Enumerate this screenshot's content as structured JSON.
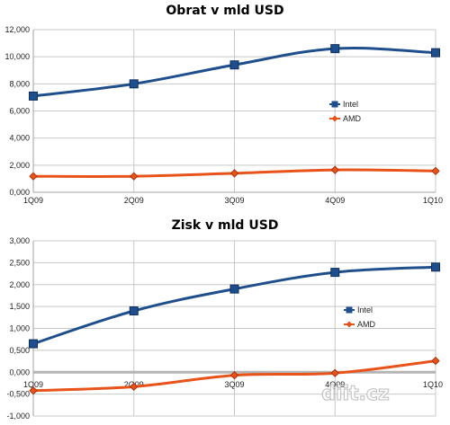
{
  "chart_data": [
    {
      "type": "line",
      "title": "Obrat v mld USD",
      "categories": [
        "1Q09",
        "2Q09",
        "3Q09",
        "4Q09",
        "1Q10"
      ],
      "ylim": [
        0,
        12
      ],
      "yticks": [
        0,
        2,
        4,
        6,
        8,
        10,
        12
      ],
      "ytick_labels": [
        "0,000",
        "2,000",
        "4,000",
        "6,000",
        "8,000",
        "10,000",
        "12,000"
      ],
      "grid": true,
      "legend_position": "right",
      "series": [
        {
          "name": "Intel",
          "color": "#1f4e8c",
          "marker": "square",
          "values": [
            7.1,
            8.0,
            9.4,
            10.6,
            10.3
          ]
        },
        {
          "name": "AMD",
          "color": "#e8531a",
          "marker": "diamond",
          "values": [
            1.18,
            1.18,
            1.4,
            1.65,
            1.57
          ]
        }
      ]
    },
    {
      "type": "line",
      "title": "Zisk v mld USD",
      "categories": [
        "1Q09",
        "2Q09",
        "3Q09",
        "4Q09",
        "1Q10"
      ],
      "ylim": [
        -1,
        3
      ],
      "yticks": [
        -1,
        -0.5,
        0,
        0.5,
        1,
        1.5,
        2,
        2.5,
        3
      ],
      "ytick_labels": [
        "-1,000",
        "-0,500",
        "0,000",
        "0,500",
        "1,000",
        "1,500",
        "2,000",
        "2,500",
        "3,000"
      ],
      "grid": true,
      "legend_position": "right",
      "series": [
        {
          "name": "Intel",
          "color": "#1f4e8c",
          "marker": "square",
          "values": [
            0.65,
            1.4,
            1.9,
            2.28,
            2.4
          ]
        },
        {
          "name": "AMD",
          "color": "#e8531a",
          "marker": "diamond",
          "values": [
            -0.42,
            -0.33,
            -0.07,
            -0.02,
            0.26
          ]
        }
      ]
    }
  ],
  "watermark": "diit.cz"
}
